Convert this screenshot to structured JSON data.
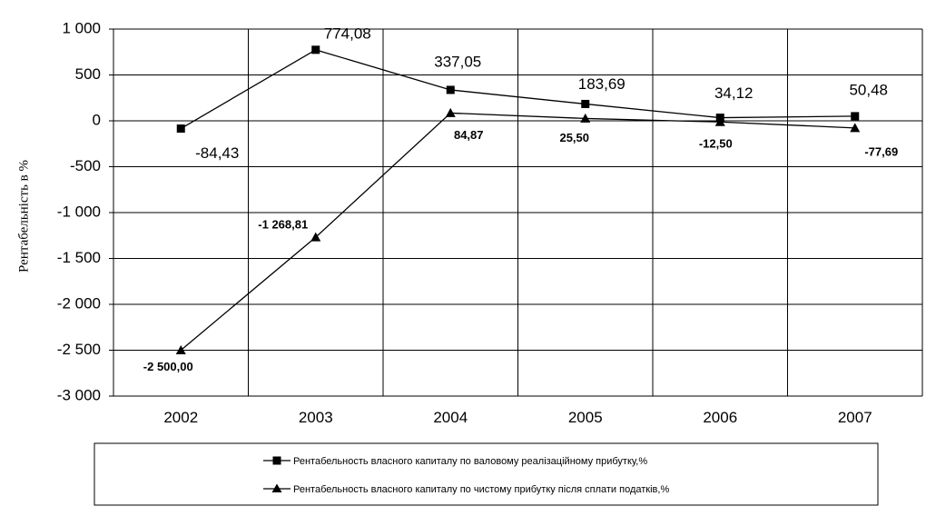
{
  "chart_data": {
    "type": "line",
    "ylabel": "Рентабельність в %",
    "xlabel": "",
    "title": "",
    "categories": [
      "2002",
      "2003",
      "2004",
      "2005",
      "2006",
      "2007"
    ],
    "ylim": [
      -3000,
      1000
    ],
    "y_ticks": [
      1000,
      500,
      0,
      -500,
      -1000,
      -1500,
      -2000,
      -2500,
      -3000
    ],
    "y_tick_labels": [
      "1 000",
      "500",
      "0",
      "-500",
      "-1 000",
      "-1 500",
      "-2 000",
      "-2 500",
      "-3 000"
    ],
    "grid": "vertical category lines and horizontal value lines",
    "legend_position": "bottom",
    "colors": {
      "lines": "#000000",
      "grid": "#000000",
      "background": "#ffffff"
    },
    "series": [
      {
        "name": "Рентабельность власного капиталу  по валовому реалізаційному прибутку,%",
        "marker": "square",
        "values": [
          -84.43,
          774.08,
          337.05,
          183.69,
          34.12,
          50.48
        ],
        "labels": [
          "-84,43",
          "774,08",
          "337,05",
          "183,69",
          "34,12",
          "50,48"
        ]
      },
      {
        "name": "Рентабельность власного капиталу  по чистому прибутку після сплати податків,%",
        "marker": "triangle",
        "values": [
          -2500.0,
          -1268.81,
          84.87,
          25.5,
          -12.5,
          -77.69
        ],
        "labels": [
          "-2 500,00",
          "-1 268,81",
          "84,87",
          "25,50",
          "-12,50",
          "-77,69"
        ]
      }
    ]
  }
}
